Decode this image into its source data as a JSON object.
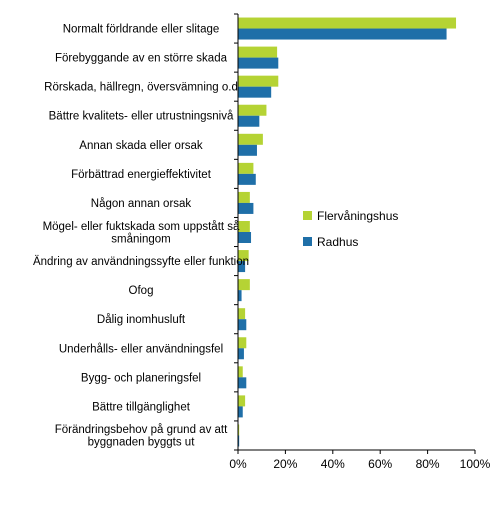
{
  "chart_data": {
    "type": "bar",
    "orientation": "horizontal",
    "categories": [
      "Normalt förldrande eller slitage",
      "Förebyggande av en större skada",
      "Rörskada, hällregn, översvämning o.d",
      "Bättre kvalitets- eller utrustningsnivå",
      "Annan skada eller orsak",
      "Förbättrad energieffektivitet",
      "Någon annan orsak",
      "Mögel- eller fuktskada som uppstått så småningom",
      "Ändring av användningssyfte eller funktion",
      "Ofog",
      "Dålig inomhusluft",
      "Underhålls- eller användningsfel",
      "Bygg- och planeringsfel",
      "Bättre tillgänglighet",
      "Förändringsbehov på grund av att byggnaden byggts ut"
    ],
    "series": [
      {
        "name": "Flervåningshus",
        "color": "#b5d334",
        "values": [
          92,
          16.5,
          17,
          12,
          10.5,
          6.5,
          5,
          5,
          4.5,
          5,
          3,
          3.5,
          2,
          3,
          0.5
        ]
      },
      {
        "name": "Radhus",
        "color": "#1f6fa8",
        "values": [
          88,
          17,
          14,
          9,
          8,
          7.5,
          6.5,
          5.5,
          3,
          1.5,
          3.5,
          2.5,
          3.5,
          2,
          0.5
        ]
      }
    ],
    "xlim": [
      0,
      100
    ],
    "x_ticks": [
      "0%",
      "20%",
      "40%",
      "60%",
      "80%",
      "100%"
    ],
    "legend_position": "right",
    "grid": false
  }
}
